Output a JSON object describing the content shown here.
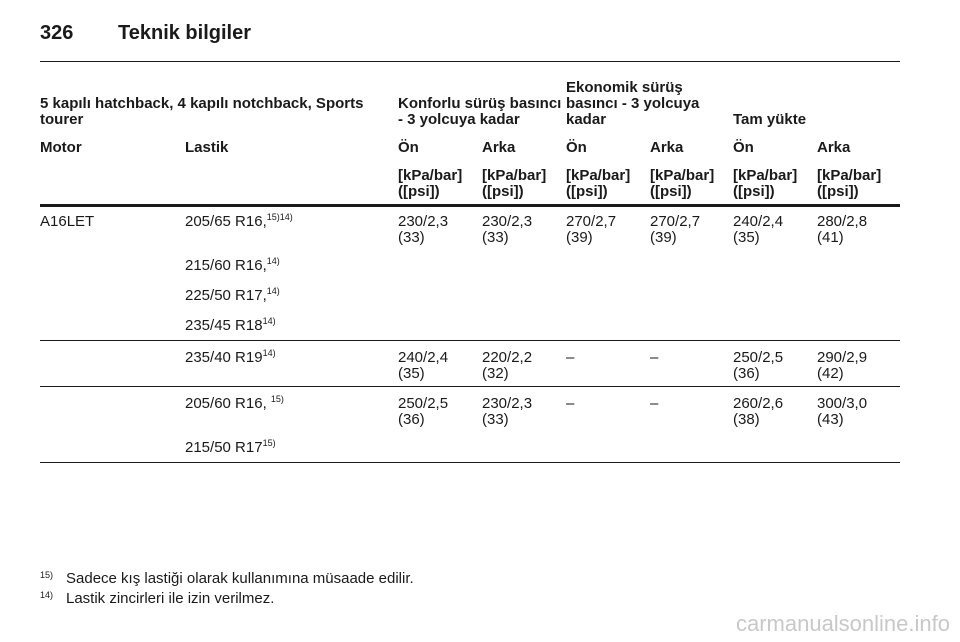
{
  "header": {
    "page": "326",
    "title": "Teknik bilgiler"
  },
  "table": {
    "group_headers": [
      "5 kapılı hatchback, 4 kapılı notchback, Sports tourer",
      "Konforlu sürüş basıncı - 3 yolcuya kadar",
      "Ekonomik sürüş basıncı - 3 yolcuya kadar",
      "Tam yükte"
    ],
    "columns": [
      "Motor",
      "Lastik",
      "Ön",
      "Arka",
      "Ön",
      "Arka",
      "Ön",
      "Arka"
    ],
    "units": [
      [
        "[kPa/bar]",
        "([psi])"
      ],
      [
        "[kPa/bar]",
        "([psi])"
      ],
      [
        "[kPa/bar]",
        "([psi])"
      ],
      [
        "[kPa/bar]",
        "([psi])"
      ],
      [
        "[kPa/bar]",
        "([psi])"
      ],
      [
        "[kPa/bar]",
        "([psi])"
      ]
    ],
    "sections": [
      {
        "motor": "A16LET",
        "tires": [
          {
            "name": "205/65 R16,",
            "note": "15)14)"
          },
          {
            "name": "215/60 R16,",
            "note": "14)"
          },
          {
            "name": "225/50 R17,",
            "note": "14)"
          },
          {
            "name": "235/45 R18",
            "note": "14)"
          }
        ],
        "values": [
          [
            "230/2,3",
            "(33)"
          ],
          [
            "230/2,3",
            "(33)"
          ],
          [
            "270/2,7",
            "(39)"
          ],
          [
            "270/2,7",
            "(39)"
          ],
          [
            "240/2,4",
            "(35)"
          ],
          [
            "280/2,8",
            "(41)"
          ]
        ]
      },
      {
        "tires": [
          {
            "name": "235/40 R19",
            "note": "14)"
          }
        ],
        "values": [
          [
            "240/2,4",
            "(35)"
          ],
          [
            "220/2,2",
            "(32)"
          ],
          [
            "–"
          ],
          [
            "–"
          ],
          [
            "250/2,5",
            "(36)"
          ],
          [
            "290/2,9",
            "(42)"
          ]
        ]
      },
      {
        "tires": [
          {
            "name": "205/60 R16, ",
            "note": "15)"
          },
          {
            "name": "215/50 R17",
            "note": "15)"
          }
        ],
        "values": [
          [
            "250/2,5",
            "(36)"
          ],
          [
            "230/2,3",
            "(33)"
          ],
          [
            "–"
          ],
          [
            "–"
          ],
          [
            "260/2,6",
            "(38)"
          ],
          [
            "300/3,0",
            "(43)"
          ]
        ]
      }
    ]
  },
  "footnotes": [
    {
      "mark": "15)",
      "text": "Sadece kış lastiği olarak kullanımına müsaade edilir."
    },
    {
      "mark": "14)",
      "text": "Lastik zincirleri ile izin verilmez."
    }
  ],
  "watermark": "carmanualsonline.info"
}
